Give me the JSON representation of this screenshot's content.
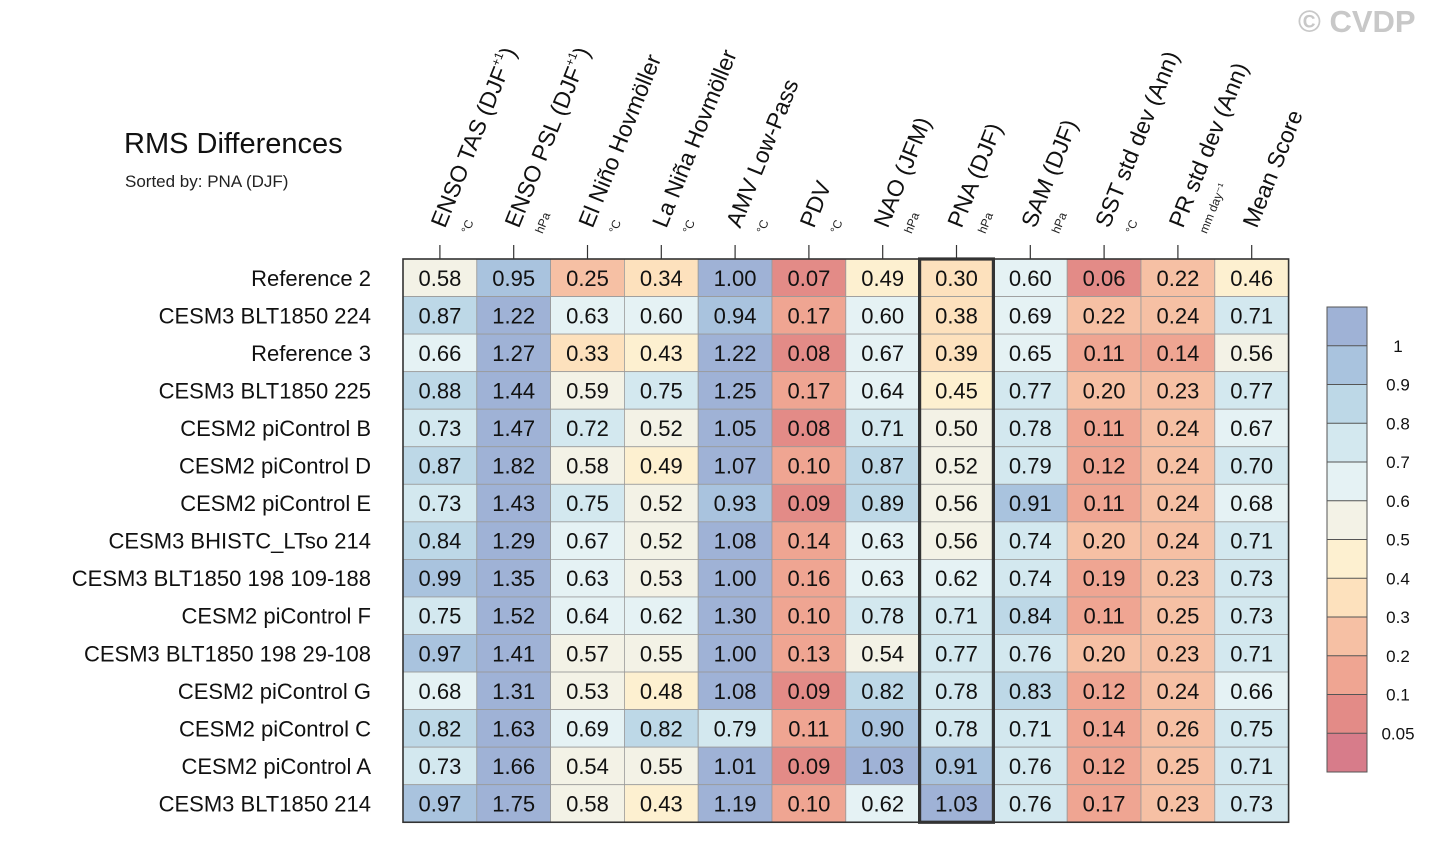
{
  "chart_data": {
    "type": "heatmap",
    "title": "RMS Differences",
    "subtitle": "Sorted by: PNA (DJF)",
    "watermark": "© CVDP",
    "columns": [
      {
        "label": "ENSO TAS (DJF",
        "sup": "+1",
        "close": ")",
        "unit": "°C"
      },
      {
        "label": "ENSO PSL (DJF",
        "sup": "+1",
        "close": ")",
        "unit": "hPa"
      },
      {
        "label": "El Niño Hovmöller",
        "sup": "",
        "close": "",
        "unit": "°C"
      },
      {
        "label": "La Niña Hovmöller",
        "sup": "",
        "close": "",
        "unit": "°C"
      },
      {
        "label": "AMV Low-Pass",
        "sup": "",
        "close": "",
        "unit": "°C"
      },
      {
        "label": "PDV",
        "sup": "",
        "close": "",
        "unit": "°C"
      },
      {
        "label": "NAO (JFM)",
        "sup": "",
        "close": "",
        "unit": "hPa"
      },
      {
        "label": "PNA (DJF)",
        "sup": "",
        "close": "",
        "unit": "hPa"
      },
      {
        "label": "SAM (DJF)",
        "sup": "",
        "close": "",
        "unit": "hPa"
      },
      {
        "label": "SST std dev (Ann)",
        "sup": "",
        "close": "",
        "unit": "°C"
      },
      {
        "label": "PR std dev (Ann)",
        "sup": "",
        "close": "",
        "unit": "mm day⁻¹"
      },
      {
        "label": "Mean Score",
        "sup": "",
        "close": "",
        "unit": ""
      }
    ],
    "rows": [
      "Reference 2",
      "CESM3 BLT1850 224",
      "Reference 3",
      "CESM3 BLT1850 225",
      "CESM2 piControl B",
      "CESM2 piControl D",
      "CESM2 piControl E",
      "CESM3 BHISTC_LTso 214",
      "CESM3 BLT1850 198 109-188",
      "CESM2 piControl F",
      "CESM3 BLT1850 198 29-108",
      "CESM2 piControl G",
      "CESM2 piControl C",
      "CESM2 piControl A",
      "CESM3 BLT1850 214"
    ],
    "values": [
      [
        "0.58",
        "0.95",
        "0.25",
        "0.34",
        "1.00",
        "0.07",
        "0.49",
        "0.30",
        "0.60",
        "0.06",
        "0.22",
        "0.46"
      ],
      [
        "0.87",
        "1.22",
        "0.63",
        "0.60",
        "0.94",
        "0.17",
        "0.60",
        "0.38",
        "0.69",
        "0.22",
        "0.24",
        "0.71"
      ],
      [
        "0.66",
        "1.27",
        "0.33",
        "0.43",
        "1.22",
        "0.08",
        "0.67",
        "0.39",
        "0.65",
        "0.11",
        "0.14",
        "0.56"
      ],
      [
        "0.88",
        "1.44",
        "0.59",
        "0.75",
        "1.25",
        "0.17",
        "0.64",
        "0.45",
        "0.77",
        "0.20",
        "0.23",
        "0.77"
      ],
      [
        "0.73",
        "1.47",
        "0.72",
        "0.52",
        "1.05",
        "0.08",
        "0.71",
        "0.50",
        "0.78",
        "0.11",
        "0.24",
        "0.67"
      ],
      [
        "0.87",
        "1.82",
        "0.58",
        "0.49",
        "1.07",
        "0.10",
        "0.87",
        "0.52",
        "0.79",
        "0.12",
        "0.24",
        "0.70"
      ],
      [
        "0.73",
        "1.43",
        "0.75",
        "0.52",
        "0.93",
        "0.09",
        "0.89",
        "0.56",
        "0.91",
        "0.11",
        "0.24",
        "0.68"
      ],
      [
        "0.84",
        "1.29",
        "0.67",
        "0.52",
        "1.08",
        "0.14",
        "0.63",
        "0.56",
        "0.74",
        "0.20",
        "0.24",
        "0.71"
      ],
      [
        "0.99",
        "1.35",
        "0.63",
        "0.53",
        "1.00",
        "0.16",
        "0.63",
        "0.62",
        "0.74",
        "0.19",
        "0.23",
        "0.73"
      ],
      [
        "0.75",
        "1.52",
        "0.64",
        "0.62",
        "1.30",
        "0.10",
        "0.78",
        "0.71",
        "0.84",
        "0.11",
        "0.25",
        "0.73"
      ],
      [
        "0.97",
        "1.41",
        "0.57",
        "0.55",
        "1.00",
        "0.13",
        "0.54",
        "0.77",
        "0.76",
        "0.20",
        "0.23",
        "0.71"
      ],
      [
        "0.68",
        "1.31",
        "0.53",
        "0.48",
        "1.08",
        "0.09",
        "0.82",
        "0.78",
        "0.83",
        "0.12",
        "0.24",
        "0.66"
      ],
      [
        "0.82",
        "1.63",
        "0.69",
        "0.82",
        "0.79",
        "0.11",
        "0.90",
        "0.78",
        "0.71",
        "0.14",
        "0.26",
        "0.75"
      ],
      [
        "0.73",
        "1.66",
        "0.54",
        "0.55",
        "1.01",
        "0.09",
        "1.03",
        "0.91",
        "0.76",
        "0.12",
        "0.25",
        "0.71"
      ],
      [
        "0.97",
        "1.75",
        "0.58",
        "0.43",
        "1.19",
        "0.10",
        "0.62",
        "1.03",
        "0.76",
        "0.17",
        "0.23",
        "0.73"
      ]
    ],
    "sorted_column": "PNA (DJF)",
    "colorbar": {
      "labels": [
        "1",
        "0.9",
        "0.8",
        "0.7",
        "0.6",
        "0.5",
        "0.4",
        "0.3",
        "0.2",
        "0.1",
        "0.05"
      ],
      "thresholds": [
        1,
        0.9,
        0.8,
        0.7,
        0.6,
        0.5,
        0.4,
        0.3,
        0.2,
        0.1,
        0.05
      ],
      "colors": [
        "#9fb2d6",
        "#a9c3de",
        "#bdd8e7",
        "#d3e8ef",
        "#e5f2f4",
        "#f3f2e6",
        "#fdf0d0",
        "#fde1bd",
        "#f6c0a4",
        "#efa592",
        "#e38b87",
        "#d77c8a"
      ]
    }
  }
}
